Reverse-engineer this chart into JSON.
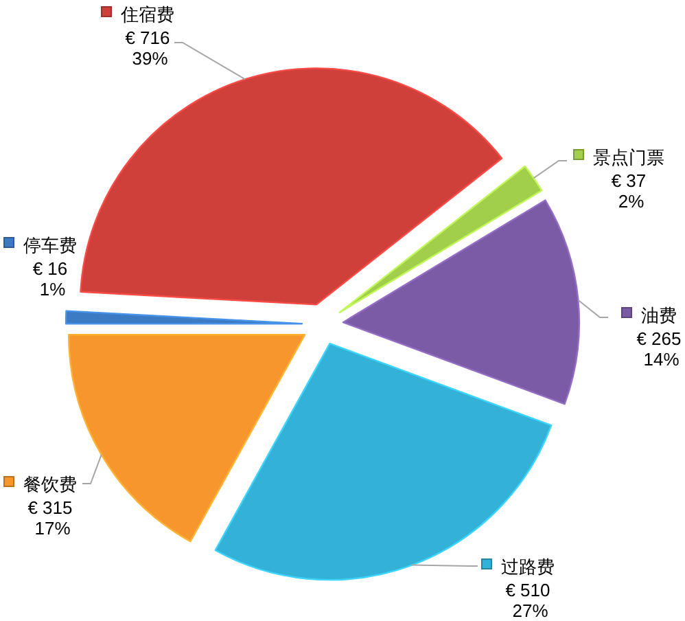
{
  "chart_data": {
    "type": "pie",
    "categories": [
      "停车费",
      "住宿费",
      "景点门票",
      "油费",
      "过路费",
      "餐饮费"
    ],
    "values": [
      16,
      716,
      37,
      265,
      510,
      315
    ],
    "colors": [
      "#3c7bc4",
      "#d0403b",
      "#a2cf4b",
      "#7b5ba5",
      "#33b1d6",
      "#f7962c"
    ],
    "value_labels": [
      "€ 16\n1%",
      "€ 716\n39%",
      "€ 37\n2%",
      "€ 265\n14%",
      "€ 510\n27%",
      "€ 315\n17%"
    ],
    "legend": true
  }
}
